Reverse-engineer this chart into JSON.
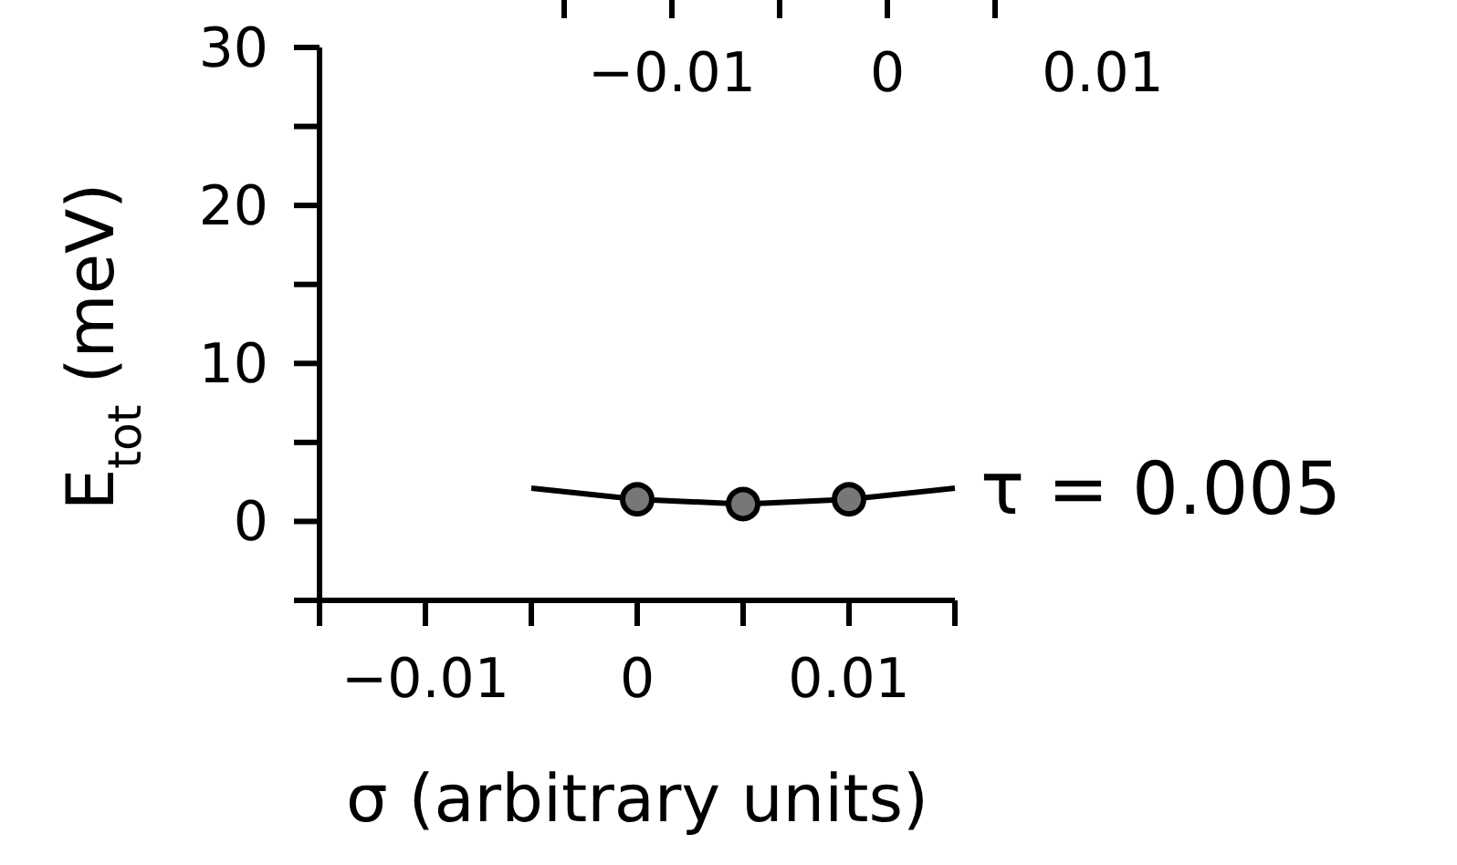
{
  "chart_data": [
    {
      "type": "line",
      "xlabel": "σ (arbitrary units)",
      "ylabel": "E$_{tot}$  (meV)",
      "xlim": [
        -0.015,
        0.015
      ],
      "xticks": [
        {
          "value": -0.015,
          "label": null
        },
        -0.01,
        {
          "value": -0.005,
          "label": null
        },
        0,
        {
          "value": 0.005,
          "label": null
        },
        0.01,
        {
          "value": 0.015,
          "label": null
        }
      ],
      "ylim": [
        -5,
        30
      ],
      "yticks": [
        {
          "value": -5,
          "label": null
        },
        0,
        {
          "value": 5,
          "label": null
        },
        10,
        {
          "value": 15,
          "label": null
        },
        20,
        {
          "value": 25,
          "label": null
        },
        30
      ],
      "series": [
        {
          "type": "line",
          "color": "#000000",
          "marker": "none",
          "x": [
            -0.005,
            0,
            0.005,
            0.01,
            0.015
          ],
          "values": [
            2.1,
            1.4,
            1.1,
            1.4,
            2.1
          ]
        },
        {
          "type": "scatter",
          "color": "#000000",
          "marker": "circle",
          "x": [
            0,
            0.005,
            0.01
          ],
          "values": [
            1.4,
            1.1,
            1.4
          ]
        }
      ],
      "annotations": [
        {
          "text": "τ = 0.005",
          "x": 0.015,
          "y": 2.1
        }
      ]
    },
    {
      "type": "other",
      "annotations": [
        "−0.01",
        "0",
        "0.01"
      ]
    }
  ]
}
